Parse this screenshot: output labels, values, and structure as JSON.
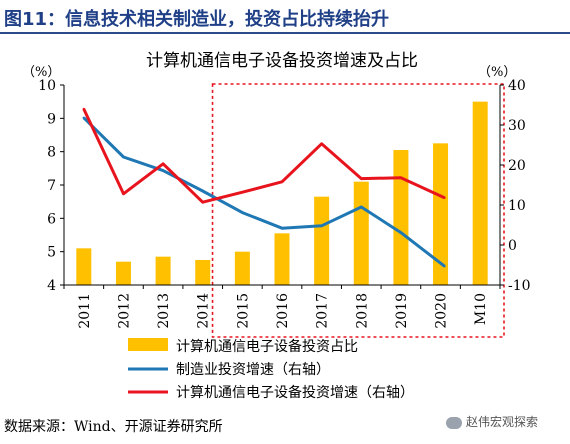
{
  "figure": {
    "title": "图11：信息技术相关制造业，投资占比持续抬升",
    "source": "数据来源：Wind、开源证券研究所",
    "watermark": "赵伟宏观探索"
  },
  "chart_data": {
    "type": "bar+line",
    "title": "计算机通信电子设备投资增速及占比",
    "categories": [
      "2011",
      "2012",
      "2013",
      "2014",
      "2015",
      "2016",
      "2017",
      "2018",
      "2019",
      "2020",
      "M10"
    ],
    "y_left": {
      "label": "（%）",
      "min": 4,
      "max": 10,
      "ticks": [
        4,
        5,
        6,
        7,
        8,
        9,
        10
      ]
    },
    "y_right": {
      "label": "（%）",
      "min": -10,
      "max": 40,
      "ticks": [
        -10,
        0,
        10,
        20,
        30,
        40
      ]
    },
    "bar_series": {
      "name": "计算机通信电子设备投资占比",
      "axis": "left",
      "color": "#ffc000",
      "x": [
        0,
        1,
        2,
        3,
        4,
        5,
        6,
        7,
        8,
        9,
        10
      ],
      "values": [
        5.1,
        4.7,
        4.85,
        4.75,
        5.0,
        5.55,
        6.65,
        7.1,
        8.05,
        8.25,
        9.5
      ]
    },
    "line_series": [
      {
        "name": "制造业投资增速（右轴）",
        "axis": "right",
        "color": "#1f77b4",
        "x": [
          0,
          1,
          2,
          3,
          4,
          5,
          6,
          7,
          8,
          9.1
        ],
        "values": [
          31.8,
          22.0,
          18.6,
          13.5,
          8.1,
          4.2,
          4.8,
          9.5,
          3.1,
          -5.3
        ]
      },
      {
        "name": "计算机通信电子设备投资增速（右轴）",
        "axis": "right",
        "color": "#e8141d",
        "x": [
          0,
          1,
          2,
          3,
          4,
          5,
          6,
          7,
          8,
          9.1
        ],
        "values": [
          34.0,
          12.8,
          20.3,
          10.7,
          13.2,
          15.8,
          25.3,
          16.6,
          16.8,
          11.8
        ]
      }
    ],
    "highlight": {
      "from_category": "2015",
      "to_category": "M10",
      "style": "red dashed box"
    },
    "legend_position": "bottom",
    "grid": false
  }
}
